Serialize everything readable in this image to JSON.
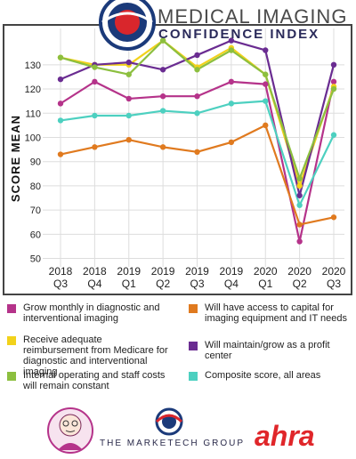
{
  "header": {
    "title": "MEDICAL IMAGING",
    "subtitle": "CONFIDENCE INDEX"
  },
  "chart_data": {
    "type": "line",
    "title": "MEDICAL IMAGING CONFIDENCE INDEX",
    "xlabel": "",
    "ylabel": "SCORE MEAN",
    "ylim": [
      48,
      145
    ],
    "yticks": [
      50,
      60,
      70,
      80,
      90,
      100,
      110,
      120,
      130
    ],
    "grid": true,
    "categories": [
      {
        "year": "2018",
        "quarter": "Q3"
      },
      {
        "year": "2018",
        "quarter": "Q4"
      },
      {
        "year": "2019",
        "quarter": "Q1"
      },
      {
        "year": "2019",
        "quarter": "Q2"
      },
      {
        "year": "2019",
        "quarter": "Q3"
      },
      {
        "year": "2019",
        "quarter": "Q4"
      },
      {
        "year": "2020",
        "quarter": "Q1"
      },
      {
        "year": "2020",
        "quarter": "Q2"
      },
      {
        "year": "2020",
        "quarter": "Q3"
      }
    ],
    "series": [
      {
        "name": "Grow monthly in diagnostic and interventional imaging",
        "color": "#b5338a",
        "values": [
          114,
          123,
          116,
          117,
          117,
          123,
          122,
          57,
          123
        ]
      },
      {
        "name": "Will have access to capital for imaging equipment and IT needs",
        "color": "#e07a1f",
        "values": [
          93,
          96,
          99,
          96,
          94,
          98,
          105,
          64,
          67
        ]
      },
      {
        "name": "Receive adequate reimbursement from Medicare for diagnostic and interventional imaging",
        "color": "#f2d21b",
        "values": [
          133,
          130,
          130,
          140,
          129,
          137,
          126,
          80,
          121
        ]
      },
      {
        "name": "Will maintain/grow as a profit center",
        "color": "#6a2c91",
        "values": [
          124,
          130,
          131,
          128,
          134,
          140,
          136,
          76,
          130
        ]
      },
      {
        "name": "Internal operating and staff costs will remain constant",
        "color": "#8cbf3f",
        "values": [
          133,
          129,
          126,
          140,
          128,
          136,
          126,
          83,
          120
        ]
      },
      {
        "name": "Composite score, all areas",
        "color": "#4dd0c0",
        "values": [
          107,
          109,
          109,
          111,
          110,
          114,
          115,
          72,
          101
        ]
      }
    ]
  },
  "legend": [
    {
      "text": "Grow monthly in diagnostic and interventional imaging",
      "color": "#b5338a"
    },
    {
      "text": "Will have access to capital for imaging equipment and IT needs",
      "color": "#e07a1f"
    },
    {
      "text": "Receive adequate reimbursement from Medicare for diagnostic and interventional imaging",
      "color": "#f2d21b"
    },
    {
      "text": "Will maintain/grow as a profit center",
      "color": "#6a2c91"
    },
    {
      "text": "Internal operating and staff costs will remain constant",
      "color": "#8cbf3f"
    },
    {
      "text": "Composite score, all areas",
      "color": "#4dd0c0"
    }
  ],
  "footer": {
    "marketech": "THE MARKETECH GROUP",
    "ahra": "ahra"
  }
}
